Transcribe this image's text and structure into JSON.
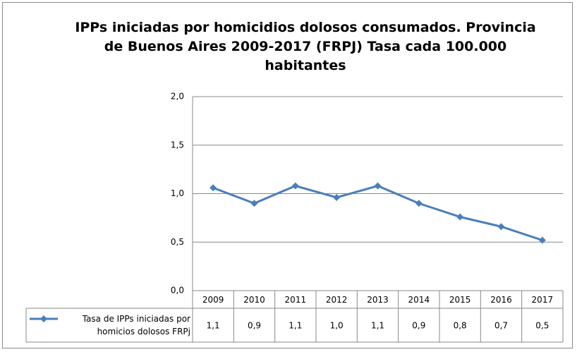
{
  "chart_data": {
    "type": "line",
    "title": "IPPs iniciadas por homicidios dolosos consumados. Provincia de Buenos Aires 2009-2017 (FRPJ) Tasa cada 100.000 habitantes",
    "categories": [
      "2009",
      "2010",
      "2011",
      "2012",
      "2013",
      "2014",
      "2015",
      "2016",
      "2017"
    ],
    "series": [
      {
        "name": "Tasa de IPPs iniciadas por homicios dolosos FRPj",
        "color": "#4a7ebb",
        "values": [
          1.06,
          0.9,
          1.08,
          0.96,
          1.08,
          0.9,
          0.76,
          0.66,
          0.52
        ],
        "value_labels": [
          "1,1",
          "0,9",
          "1,1",
          "1,0",
          "1,1",
          "0,9",
          "0,8",
          "0,7",
          "0,5"
        ]
      }
    ],
    "ylim": [
      0,
      2
    ],
    "yticks": [
      {
        "value": 0,
        "label": "0,0"
      },
      {
        "value": 0.5,
        "label": "0,5"
      },
      {
        "value": 1,
        "label": "1,0"
      },
      {
        "value": 1.5,
        "label": "1,5"
      },
      {
        "value": 2,
        "label": "2,0"
      }
    ],
    "grid": true
  }
}
